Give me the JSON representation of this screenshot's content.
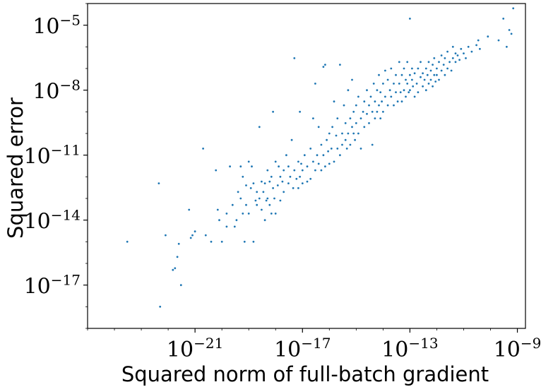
{
  "chart_data": {
    "type": "scatter",
    "xscale": "log",
    "yscale": "log",
    "xlim": [
      1e-25,
      2e-09
    ],
    "ylim": [
      1e-19,
      0.0001
    ],
    "x_ticks": [
      1e-21,
      1e-17,
      1e-13,
      1e-09
    ],
    "y_ticks": [
      1e-17,
      1e-14,
      1e-11,
      1e-08,
      1e-05
    ],
    "x_tick_labels": [
      {
        "base": "10",
        "exp": "−21"
      },
      {
        "base": "10",
        "exp": "−17"
      },
      {
        "base": "10",
        "exp": "−13"
      },
      {
        "base": "10",
        "exp": "−9"
      }
    ],
    "y_tick_labels": [
      {
        "base": "10",
        "exp": "−17"
      },
      {
        "base": "10",
        "exp": "−14"
      },
      {
        "base": "10",
        "exp": "−11"
      },
      {
        "base": "10",
        "exp": "−8"
      },
      {
        "base": "10",
        "exp": "−5"
      }
    ],
    "xlabel": "Squared norm of full-batch gradient",
    "ylabel": "Squared error",
    "grid": false,
    "legend": "none",
    "point_color": "#1f77b4",
    "points": [
      [
        3e-24,
        1e-15
      ],
      [
        4.5e-23,
        5e-13
      ],
      [
        5e-23,
        1e-18
      ],
      [
        8e-23,
        2e-15
      ],
      [
        1.5e-22,
        5e-17
      ],
      [
        1.8e-22,
        6e-17
      ],
      [
        2.2e-22,
        2e-16
      ],
      [
        2.5e-22,
        8e-16
      ],
      [
        3e-22,
        1e-17
      ],
      [
        6e-22,
        3e-14
      ],
      [
        7e-22,
        1.5e-15
      ],
      [
        8e-22,
        2e-15
      ],
      [
        1e-21,
        3e-15
      ],
      [
        2e-21,
        2e-11
      ],
      [
        2.5e-21,
        2e-15
      ],
      [
        4e-21,
        1e-15
      ],
      [
        6e-21,
        2e-12
      ],
      [
        7e-21,
        3e-14
      ],
      [
        8e-21,
        1e-14
      ],
      [
        1e-20,
        1e-15
      ],
      [
        1.5e-20,
        5e-15
      ],
      [
        1.5e-20,
        2e-14
      ],
      [
        2e-20,
        3e-12
      ],
      [
        2.5e-20,
        5e-14
      ],
      [
        3e-20,
        5e-15
      ],
      [
        3.5e-20,
        1e-14
      ],
      [
        4e-20,
        2e-13
      ],
      [
        5e-20,
        3e-12
      ],
      [
        5e-20,
        1e-13
      ],
      [
        6e-20,
        2e-14
      ],
      [
        6e-20,
        1e-12
      ],
      [
        7e-20,
        1e-15
      ],
      [
        8e-20,
        4e-13
      ],
      [
        8e-20,
        5e-14
      ],
      [
        1e-19,
        2e-14
      ],
      [
        1e-19,
        5e-12
      ],
      [
        1.2e-19,
        3e-13
      ],
      [
        1.3e-19,
        3e-12
      ],
      [
        1.5e-19,
        5e-13
      ],
      [
        1.5e-19,
        1e-15
      ],
      [
        1.8e-19,
        8e-14
      ],
      [
        2e-19,
        2e-13
      ],
      [
        2e-19,
        5e-14
      ],
      [
        2.5e-19,
        1e-13
      ],
      [
        2.5e-19,
        2e-10
      ],
      [
        3e-19,
        3e-14
      ],
      [
        3e-19,
        6e-13
      ],
      [
        3.5e-19,
        2e-13
      ],
      [
        4e-19,
        1e-14
      ],
      [
        4e-19,
        5e-13
      ],
      [
        4.5e-19,
        8e-14
      ],
      [
        5e-19,
        2e-12
      ],
      [
        5e-19,
        1e-13
      ],
      [
        6e-19,
        5e-14
      ],
      [
        6e-19,
        6e-13
      ],
      [
        7e-19,
        2e-14
      ],
      [
        7e-19,
        1e-12
      ],
      [
        8e-19,
        3e-13
      ],
      [
        8e-19,
        1e-09
      ],
      [
        9e-19,
        1e-13
      ],
      [
        1e-18,
        2e-14
      ],
      [
        1e-18,
        5e-12
      ],
      [
        1.2e-18,
        4e-13
      ],
      [
        1.3e-18,
        3e-12
      ],
      [
        1.5e-18,
        1e-12
      ],
      [
        1.5e-18,
        8e-14
      ],
      [
        1.8e-18,
        6e-13
      ],
      [
        2e-18,
        2e-12
      ],
      [
        2e-18,
        2e-13
      ],
      [
        2.5e-18,
        1e-11
      ],
      [
        3e-18,
        5e-13
      ],
      [
        3e-18,
        3e-12
      ],
      [
        3.5e-18,
        1e-12
      ],
      [
        4e-18,
        5e-11
      ],
      [
        4.5e-18,
        3e-13
      ],
      [
        5e-18,
        2e-12
      ],
      [
        5e-18,
        3e-07
      ],
      [
        6e-18,
        8e-13
      ],
      [
        7e-18,
        5e-12
      ],
      [
        7e-18,
        3e-13
      ],
      [
        8e-18,
        1e-09
      ],
      [
        8e-18,
        1e-12
      ],
      [
        9e-18,
        4e-12
      ],
      [
        1e-17,
        5e-13
      ],
      [
        1e-17,
        2e-12
      ],
      [
        1.2e-17,
        1e-11
      ],
      [
        1.5e-17,
        6e-13
      ],
      [
        1.5e-17,
        3e-12
      ],
      [
        2e-17,
        2e-11
      ],
      [
        2e-17,
        8e-13
      ],
      [
        2.5e-17,
        5e-12
      ],
      [
        2.5e-17,
        5e-10
      ],
      [
        3e-17,
        2e-12
      ],
      [
        3e-17,
        2e-08
      ],
      [
        3.5e-17,
        1e-11
      ],
      [
        4e-17,
        4e-12
      ],
      [
        4e-17,
        2e-10
      ],
      [
        5e-17,
        2e-12
      ],
      [
        5e-17,
        3e-11
      ],
      [
        6e-17,
        1e-11
      ],
      [
        6e-17,
        1.2e-07
      ],
      [
        7e-17,
        3e-12
      ],
      [
        7e-17,
        1.5e-07
      ],
      [
        8e-17,
        5e-11
      ],
      [
        9e-17,
        1.5e-11
      ],
      [
        1e-16,
        1e-10
      ],
      [
        1e-16,
        4e-12
      ],
      [
        1.2e-16,
        2e-11
      ],
      [
        1.3e-16,
        2e-10
      ],
      [
        1.5e-16,
        5e-12
      ],
      [
        1.5e-16,
        3e-09
      ],
      [
        1.8e-16,
        8e-11
      ],
      [
        2e-16,
        2e-11
      ],
      [
        2e-16,
        5e-10
      ],
      [
        2.5e-16,
        1e-11
      ],
      [
        2.5e-16,
        1.5e-07
      ],
      [
        3e-16,
        3e-11
      ],
      [
        3e-16,
        1e-10
      ],
      [
        3.5e-16,
        2e-09
      ],
      [
        4e-16,
        5e-11
      ],
      [
        4e-16,
        3e-10
      ],
      [
        4.5e-16,
        2e-11
      ],
      [
        5e-16,
        1e-10
      ],
      [
        5e-16,
        1e-08
      ],
      [
        6e-16,
        5e-10
      ],
      [
        6e-16,
        3e-11
      ],
      [
        7e-16,
        2e-10
      ],
      [
        7e-16,
        3e-08
      ],
      [
        8e-16,
        1e-09
      ],
      [
        8e-16,
        1e-10
      ],
      [
        9e-16,
        5e-11
      ],
      [
        1e-15,
        3e-10
      ],
      [
        1e-15,
        2e-09
      ],
      [
        1.2e-15,
        1e-10
      ],
      [
        1.2e-15,
        5e-09
      ],
      [
        1.5e-15,
        5e-10
      ],
      [
        1.5e-15,
        2e-11
      ],
      [
        1.8e-15,
        1e-09
      ],
      [
        2e-15,
        3e-09
      ],
      [
        2e-15,
        2e-10
      ],
      [
        2.5e-15,
        8e-10
      ],
      [
        2.5e-15,
        1e-08
      ],
      [
        3e-15,
        3e-10
      ],
      [
        3e-15,
        2e-09
      ],
      [
        3.5e-15,
        5e-09
      ],
      [
        4e-15,
        1e-09
      ],
      [
        4e-15,
        3e-11
      ],
      [
        4.5e-15,
        2e-08
      ],
      [
        5e-15,
        5e-10
      ],
      [
        5e-15,
        3e-09
      ],
      [
        6e-15,
        1e-09
      ],
      [
        6e-15,
        1e-08
      ],
      [
        7e-15,
        2e-09
      ],
      [
        7e-15,
        5e-08
      ],
      [
        8e-15,
        5e-10
      ],
      [
        8e-15,
        8e-09
      ],
      [
        9e-15,
        3e-09
      ],
      [
        1e-14,
        1e-09
      ],
      [
        1e-14,
        2e-08
      ],
      [
        1.2e-14,
        5e-09
      ],
      [
        1.2e-14,
        8e-08
      ],
      [
        1.5e-14,
        2e-09
      ],
      [
        1.5e-14,
        3e-08
      ],
      [
        1.8e-14,
        1e-08
      ],
      [
        2e-14,
        5e-09
      ],
      [
        2e-14,
        1e-07
      ],
      [
        2.5e-14,
        2e-08
      ],
      [
        2.5e-14,
        2e-09
      ],
      [
        3e-14,
        8e-09
      ],
      [
        3e-14,
        5e-08
      ],
      [
        3.5e-14,
        3e-09
      ],
      [
        4e-14,
        2e-08
      ],
      [
        4e-14,
        2e-07
      ],
      [
        4.5e-14,
        8e-09
      ],
      [
        5e-14,
        3e-09
      ],
      [
        5e-14,
        5e-08
      ],
      [
        6e-14,
        1e-08
      ],
      [
        6e-14,
        1e-07
      ],
      [
        7e-14,
        5e-09
      ],
      [
        7e-14,
        3e-08
      ],
      [
        8e-14,
        2e-08
      ],
      [
        8e-14,
        2e-07
      ],
      [
        9e-14,
        8e-09
      ],
      [
        1e-13,
        5e-08
      ],
      [
        1e-13,
        1e-08
      ],
      [
        1e-13,
        2e-05
      ],
      [
        1.2e-13,
        3e-08
      ],
      [
        1.2e-13,
        1e-07
      ],
      [
        1.3e-13,
        1.5e-08
      ],
      [
        1.5e-13,
        5e-09
      ],
      [
        1.5e-13,
        6e-08
      ],
      [
        1.8e-13,
        2e-08
      ],
      [
        2e-13,
        1e-07
      ],
      [
        2e-13,
        8e-09
      ],
      [
        2.5e-13,
        4e-08
      ],
      [
        2.5e-13,
        2e-07
      ],
      [
        3e-13,
        1.5e-08
      ],
      [
        3e-13,
        6e-08
      ],
      [
        3.5e-13,
        3e-08
      ],
      [
        4e-13,
        1e-07
      ],
      [
        4e-13,
        1e-08
      ],
      [
        4.5e-13,
        5e-08
      ],
      [
        5e-13,
        2e-08
      ],
      [
        5e-13,
        2e-07
      ],
      [
        6e-13,
        8e-08
      ],
      [
        6e-13,
        3e-08
      ],
      [
        7e-13,
        1.5e-07
      ],
      [
        7e-13,
        1.5e-08
      ],
      [
        8e-13,
        5e-08
      ],
      [
        8e-13,
        3e-07
      ],
      [
        9e-13,
        2.5e-08
      ],
      [
        1e-12,
        1e-07
      ],
      [
        1e-12,
        5e-08
      ],
      [
        1.2e-12,
        2e-07
      ],
      [
        1.2e-12,
        3e-08
      ],
      [
        1.5e-12,
        8e-08
      ],
      [
        1.5e-12,
        4e-07
      ],
      [
        1.8e-12,
        1.5e-07
      ],
      [
        2e-12,
        5e-08
      ],
      [
        2e-12,
        3e-07
      ],
      [
        2.5e-12,
        1e-07
      ],
      [
        2.5e-12,
        6e-07
      ],
      [
        3e-12,
        2e-07
      ],
      [
        3.5e-12,
        8e-08
      ],
      [
        4e-12,
        3e-07
      ],
      [
        4e-12,
        1e-06
      ],
      [
        5e-12,
        2e-07
      ],
      [
        5e-12,
        5e-07
      ],
      [
        6e-12,
        4e-07
      ],
      [
        7e-12,
        2.5e-07
      ],
      [
        8e-12,
        8e-07
      ],
      [
        1e-11,
        5e-07
      ],
      [
        1.2e-11,
        3e-07
      ],
      [
        1.5e-11,
        1e-06
      ],
      [
        2e-11,
        6e-07
      ],
      [
        3e-11,
        1.2e-06
      ],
      [
        3.5e-11,
        2e-06
      ],
      [
        4e-11,
        8e-07
      ],
      [
        8e-11,
        3e-06
      ],
      [
        2e-10,
        2e-06
      ],
      [
        3e-10,
        2e-05
      ],
      [
        4e-10,
        1e-06
      ],
      [
        5e-10,
        6e-06
      ],
      [
        6e-10,
        4e-06
      ],
      [
        7e-10,
        6e-05
      ]
    ]
  }
}
